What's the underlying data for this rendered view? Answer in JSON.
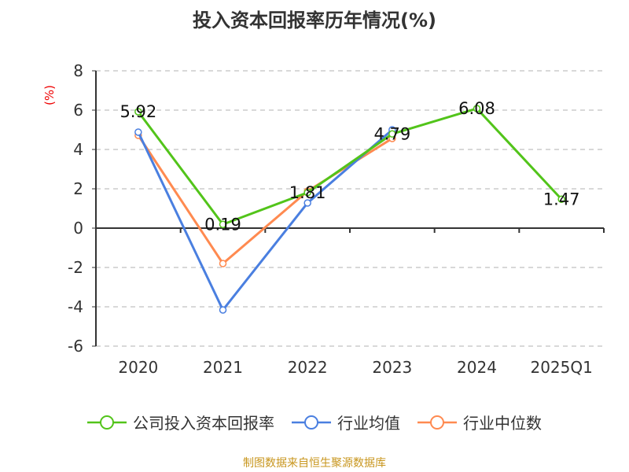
{
  "chart_data": {
    "type": "line",
    "title": "投入资本回报率历年情况(%)",
    "ylabel": "(%)",
    "xlabel": "",
    "categories": [
      "2020",
      "2021",
      "2022",
      "2023",
      "2024",
      "2025Q1"
    ],
    "ylim": [
      -6,
      8
    ],
    "yticks": [
      8,
      6,
      4,
      2,
      0,
      -2,
      -4,
      -6
    ],
    "grid": true,
    "legend_position": "bottom",
    "series": [
      {
        "name": "公司投入资本回报率",
        "color": "#52c41a",
        "values": [
          5.92,
          0.19,
          1.81,
          4.79,
          6.08,
          1.47
        ],
        "labels": [
          "5.92",
          "0.19",
          "1.81",
          "4.79",
          "6.08",
          "1.47"
        ]
      },
      {
        "name": "行业均值",
        "color": "#4a7fe0",
        "values": [
          4.88,
          -4.16,
          1.28,
          5.0,
          null,
          null
        ]
      },
      {
        "name": "行业中位数",
        "color": "#ff8a50",
        "values": [
          4.72,
          -1.8,
          1.88,
          4.56,
          null,
          null
        ]
      }
    ]
  },
  "source": "制图数据来自恒生聚源数据库"
}
